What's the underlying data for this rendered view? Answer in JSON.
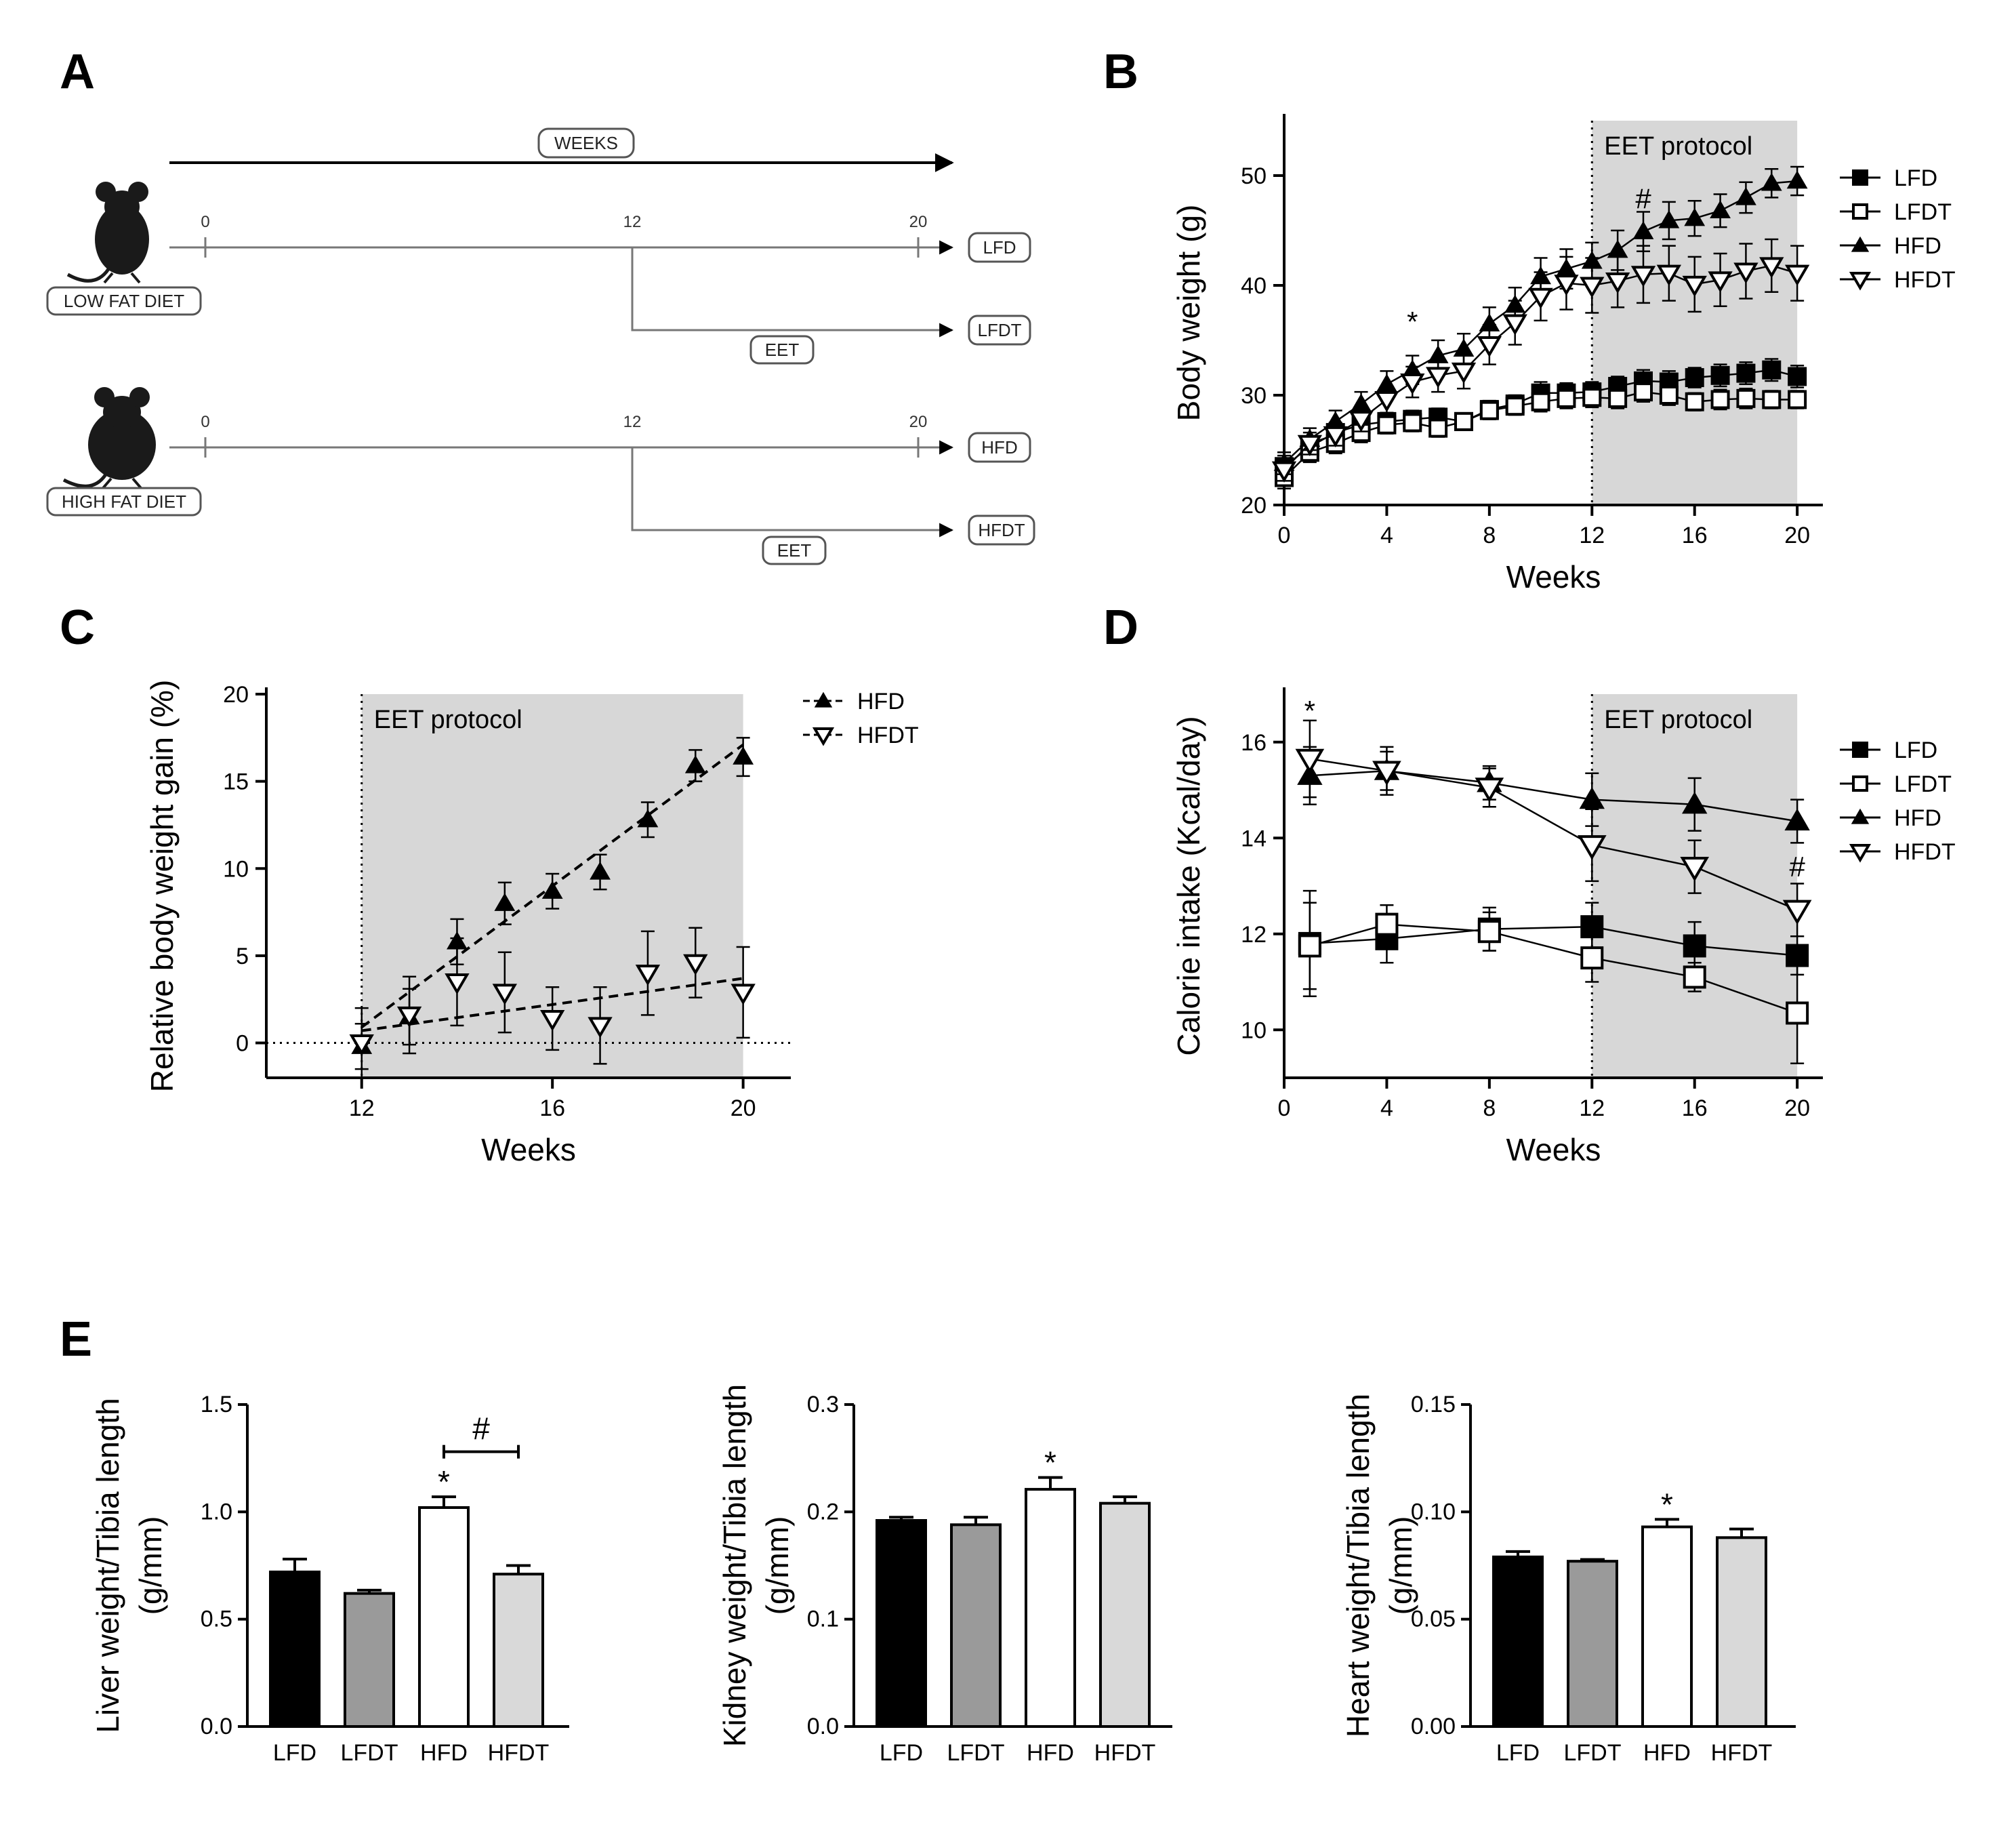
{
  "figure": {
    "panel_letters": [
      "A",
      "B",
      "C",
      "D",
      "E"
    ]
  },
  "timeline": {
    "weeks_label": "WEEKS",
    "groups": [
      {
        "diet_label": "LOW FAT DIET",
        "ticks": [
          "0",
          "12",
          "20"
        ],
        "control_label": "LFD",
        "treated_label": "LFDT",
        "treatment_label": "EET"
      },
      {
        "diet_label": "HIGH FAT DIET",
        "ticks": [
          "0",
          "12",
          "20"
        ],
        "control_label": "HFD",
        "treated_label": "HFDT",
        "treatment_label": "EET"
      }
    ]
  },
  "colors": {
    "shade": "#d7d7d7",
    "black": "#000000",
    "lfdt_bar": "#9a9a9a",
    "hfdt_bar": "#d9d9d9",
    "timeline_line": "#666666"
  },
  "chart_data": [
    {
      "id": "B",
      "type": "line",
      "xlabel": "Weeks",
      "ylabel": "Body weight (g)",
      "xlim": [
        0,
        21
      ],
      "ylim": [
        20,
        55
      ],
      "xticks": [
        0,
        4,
        8,
        12,
        16,
        20
      ],
      "yticks": [
        20,
        30,
        40,
        50
      ],
      "shade_label": "EET protocol",
      "shade_range": [
        12,
        20
      ],
      "annotations": [
        {
          "text": "*",
          "x": 5,
          "y": 35.8
        },
        {
          "text": "#",
          "x": 14,
          "y": 47
        }
      ],
      "series": [
        {
          "name": "LFD",
          "marker": "square-filled",
          "x": [
            0,
            1,
            2,
            3,
            4,
            5,
            6,
            7,
            8,
            9,
            10,
            11,
            12,
            13,
            14,
            15,
            16,
            17,
            18,
            19,
            20
          ],
          "y": [
            23.5,
            25.3,
            26.6,
            27.3,
            27.6,
            27.8,
            28.0,
            27.6,
            28.7,
            29.2,
            30.2,
            30.2,
            30.3,
            30.8,
            31.3,
            31.2,
            31.6,
            31.8,
            32.0,
            32.3,
            31.7
          ],
          "err": [
            1.0,
            0.9,
            0.9,
            0.9,
            0.8,
            0.8,
            0.8,
            0.7,
            0.8,
            0.8,
            1.0,
            0.9,
            0.9,
            0.9,
            1.0,
            1.0,
            0.9,
            1.0,
            1.0,
            1.0,
            1.0
          ]
        },
        {
          "name": "LFDT",
          "marker": "square-open",
          "x": [
            0,
            1,
            2,
            3,
            4,
            5,
            6,
            7,
            8,
            9,
            10,
            11,
            12,
            13,
            14,
            15,
            16,
            17,
            18,
            19,
            20
          ],
          "y": [
            22.5,
            24.8,
            25.6,
            26.6,
            27.3,
            27.5,
            27.0,
            27.6,
            28.6,
            29.0,
            29.4,
            29.7,
            29.8,
            29.7,
            30.3,
            30.0,
            29.4,
            29.6,
            29.7,
            29.6,
            29.6
          ],
          "err": [
            1.0,
            0.9,
            0.9,
            0.9,
            0.8,
            0.8,
            0.8,
            0.7,
            0.8,
            0.8,
            0.9,
            0.9,
            0.9,
            0.9,
            0.9,
            0.9,
            0.8,
            0.9,
            0.9,
            0.8,
            0.8
          ]
        },
        {
          "name": "HFD",
          "marker": "triangle-up-filled",
          "x": [
            0,
            1,
            2,
            3,
            4,
            5,
            6,
            7,
            8,
            9,
            10,
            11,
            12,
            13,
            14,
            15,
            16,
            17,
            18,
            19,
            20
          ],
          "y": [
            23.8,
            26.0,
            27.6,
            29.2,
            31.0,
            32.3,
            33.6,
            34.2,
            36.5,
            38.2,
            40.8,
            41.5,
            42.2,
            43.2,
            44.9,
            45.9,
            46.1,
            46.8,
            48.0,
            49.3,
            49.5
          ],
          "err": [
            1.0,
            1.0,
            1.0,
            1.1,
            1.2,
            1.3,
            1.4,
            1.4,
            1.5,
            1.6,
            1.7,
            1.8,
            1.7,
            1.8,
            1.8,
            1.7,
            1.6,
            1.5,
            1.4,
            1.3,
            1.3
          ]
        },
        {
          "name": "HFDT",
          "marker": "triangle-down-open",
          "x": [
            0,
            1,
            2,
            3,
            4,
            5,
            6,
            7,
            8,
            9,
            10,
            11,
            12,
            13,
            14,
            15,
            16,
            17,
            18,
            19,
            20
          ],
          "y": [
            23.2,
            25.6,
            26.4,
            27.8,
            29.6,
            31.2,
            31.8,
            32.2,
            34.6,
            36.6,
            39.0,
            40.2,
            40.0,
            40.4,
            41.0,
            41.1,
            40.1,
            40.5,
            41.3,
            41.8,
            41.1
          ],
          "err": [
            1.0,
            1.0,
            1.0,
            1.1,
            1.2,
            1.4,
            1.5,
            1.6,
            1.8,
            2.0,
            2.2,
            2.4,
            2.5,
            2.4,
            2.6,
            2.5,
            2.5,
            2.4,
            2.5,
            2.4,
            2.5
          ]
        }
      ]
    },
    {
      "id": "C",
      "type": "line",
      "xlabel": "Weeks",
      "ylabel": "Relative body weight gain (%)",
      "xlim": [
        10,
        21
      ],
      "ylim": [
        -2,
        20
      ],
      "xticks": [
        12,
        16,
        20
      ],
      "yticks": [
        0,
        5,
        10,
        15,
        20
      ],
      "shade_label": "EET protocol",
      "shade_range": [
        12,
        20
      ],
      "series": [
        {
          "name": "HFD",
          "marker": "triangle-up-filled",
          "x": [
            12,
            13,
            14,
            15,
            16,
            17,
            18,
            19,
            20
          ],
          "y": [
            -0.2,
            1.5,
            5.8,
            8.0,
            8.7,
            9.8,
            12.8,
            15.9,
            16.4
          ],
          "err": [
            1.3,
            1.6,
            1.3,
            1.2,
            1.0,
            1.0,
            1.0,
            0.9,
            1.1
          ],
          "trend": [
            [
              12,
              0.9
            ],
            [
              20,
              17.1
            ]
          ]
        },
        {
          "name": "HFDT",
          "marker": "triangle-down-open",
          "x": [
            12,
            13,
            14,
            15,
            16,
            17,
            18,
            19,
            20
          ],
          "y": [
            0.0,
            1.6,
            3.5,
            2.9,
            1.4,
            1.0,
            4.0,
            4.6,
            2.9
          ],
          "err": [
            2.0,
            2.2,
            2.5,
            2.3,
            1.8,
            2.2,
            2.4,
            2.0,
            2.6
          ],
          "trend": [
            [
              12,
              0.7
            ],
            [
              20,
              3.7
            ]
          ]
        }
      ]
    },
    {
      "id": "D",
      "type": "line",
      "xlabel": "Weeks",
      "ylabel": "Calorie intake (Kcal/day)",
      "xlim": [
        0,
        21
      ],
      "ylim": [
        9,
        17
      ],
      "xticks": [
        0,
        4,
        8,
        12,
        16,
        20
      ],
      "yticks": [
        10,
        12,
        14,
        16
      ],
      "shade_label": "EET protocol",
      "shade_range": [
        12,
        20
      ],
      "annotations": [
        {
          "text": "*",
          "x": 1,
          "y": 16.45
        },
        {
          "text": "#",
          "x": 20,
          "y": 13.2
        }
      ],
      "series": [
        {
          "name": "LFD",
          "marker": "square-filled",
          "x": [
            1,
            4,
            8,
            12,
            16,
            20
          ],
          "y": [
            11.8,
            11.9,
            12.1,
            12.15,
            11.75,
            11.55
          ],
          "err": [
            1.1,
            0.5,
            0.45,
            0.5,
            0.5,
            0.4
          ]
        },
        {
          "name": "LFDT",
          "marker": "square-open",
          "x": [
            1,
            4,
            8,
            12,
            16,
            20
          ],
          "y": [
            11.75,
            12.2,
            12.05,
            11.5,
            11.1,
            10.35
          ],
          "err": [
            0.9,
            0.4,
            0.4,
            0.5,
            0.3,
            1.05
          ]
        },
        {
          "name": "HFD",
          "marker": "triangle-up-filled",
          "x": [
            1,
            4,
            8,
            12,
            16,
            20
          ],
          "y": [
            15.3,
            15.4,
            15.15,
            14.8,
            14.7,
            14.35
          ],
          "err": [
            0.6,
            0.4,
            0.35,
            0.55,
            0.55,
            0.45
          ]
        },
        {
          "name": "HFDT",
          "marker": "triangle-down-open",
          "x": [
            1,
            4,
            8,
            12,
            16,
            20
          ],
          "y": [
            15.65,
            15.4,
            15.05,
            13.85,
            13.4,
            12.5
          ],
          "err": [
            0.8,
            0.5,
            0.4,
            0.75,
            0.55,
            0.55
          ]
        }
      ]
    },
    {
      "id": "E1",
      "type": "bar",
      "ylabel_lines": [
        "Liver weight/Tibia length",
        "(g/mm)"
      ],
      "categories": [
        "LFD",
        "LFDT",
        "HFD",
        "HFDT"
      ],
      "values": [
        0.72,
        0.62,
        1.02,
        0.71
      ],
      "err": [
        0.06,
        0.015,
        0.05,
        0.04
      ],
      "ylim": [
        0,
        1.5
      ],
      "yticks": [
        "0.0",
        "0.5",
        "1.0",
        "1.5"
      ],
      "star_on": "HFD",
      "bracket": {
        "from": "HFD",
        "to": "HFDT",
        "y": 1.28,
        "label": "#"
      }
    },
    {
      "id": "E2",
      "type": "bar",
      "ylabel_lines": [
        "Kidney weight/Tibia length",
        "(g/mm)"
      ],
      "categories": [
        "LFD",
        "LFDT",
        "HFD",
        "HFDT"
      ],
      "values": [
        0.192,
        0.188,
        0.221,
        0.208
      ],
      "err": [
        0.003,
        0.007,
        0.011,
        0.006
      ],
      "ylim": [
        0,
        0.3
      ],
      "yticks": [
        "0.0",
        "0.1",
        "0.2",
        "0.3"
      ],
      "star_on": "HFD"
    },
    {
      "id": "E3",
      "type": "bar",
      "ylabel_lines": [
        "Heart weight/Tibia length",
        "(g/mm)"
      ],
      "categories": [
        "LFD",
        "LFDT",
        "HFD",
        "HFDT"
      ],
      "values": [
        0.079,
        0.077,
        0.093,
        0.088
      ],
      "err": [
        0.0025,
        0.0008,
        0.0035,
        0.004
      ],
      "ylim": [
        0,
        0.15
      ],
      "yticks": [
        "0.00",
        "0.05",
        "0.10",
        "0.15"
      ],
      "star_on": "HFD"
    }
  ]
}
